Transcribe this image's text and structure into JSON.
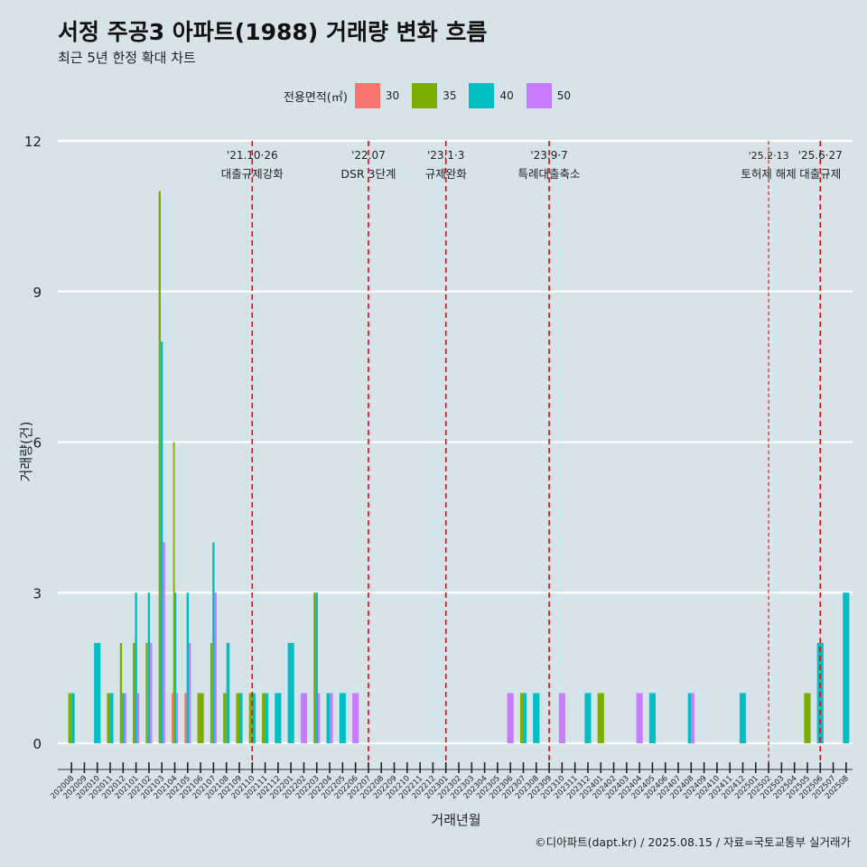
{
  "title": "서정 주공3 아파트(1988) 거래량 변화 흐름",
  "subtitle": "최근 5년 한정 확대 차트",
  "caption": "©디아파트(dapt.kr) / 2025.08.15 / 자료=국토교통부 실거래가",
  "legend": {
    "title": "전용면적(㎡)",
    "items": [
      {
        "label": "30",
        "color": "#f8766d"
      },
      {
        "label": "35",
        "color": "#7cae00"
      },
      {
        "label": "40",
        "color": "#00bfc4"
      },
      {
        "label": "50",
        "color": "#c77cff"
      }
    ]
  },
  "chart_data": {
    "type": "bar",
    "xlabel": "거래년월",
    "ylabel": "거래량(건)",
    "ylim": [
      -0.6,
      12.3
    ],
    "yticks": [
      0,
      3,
      6,
      9,
      12
    ],
    "categories": [
      "202008",
      "202009",
      "202010",
      "202011",
      "202012",
      "202101",
      "202102",
      "202103",
      "202104",
      "202105",
      "202106",
      "202107",
      "202108",
      "202109",
      "202110",
      "202111",
      "202112",
      "202201",
      "202202",
      "202203",
      "202204",
      "202205",
      "202206",
      "202207",
      "202208",
      "202209",
      "202210",
      "202211",
      "202212",
      "202301",
      "202302",
      "202303",
      "202304",
      "202305",
      "202306",
      "202307",
      "202308",
      "202309",
      "202310",
      "202311",
      "202312",
      "202401",
      "202402",
      "202403",
      "202404",
      "202405",
      "202406",
      "202407",
      "202408",
      "202409",
      "202410",
      "202411",
      "202412",
      "202501",
      "202502",
      "202503",
      "202504",
      "202505",
      "202506",
      "202507",
      "202508"
    ],
    "series": [
      {
        "name": "30",
        "color": "#f8766d",
        "values": [
          0,
          0,
          0,
          0,
          0,
          0,
          0,
          0,
          1,
          1,
          0,
          0,
          0,
          0,
          0,
          0,
          0,
          0,
          0,
          0,
          0,
          0,
          0,
          0,
          0,
          0,
          0,
          0,
          0,
          0,
          0,
          0,
          0,
          0,
          0,
          0,
          0,
          0,
          0,
          0,
          0,
          0,
          0,
          0,
          0,
          0,
          0,
          0,
          0,
          0,
          0,
          0,
          0,
          0,
          0,
          0,
          0,
          0,
          0,
          0,
          0
        ]
      },
      {
        "name": "35",
        "color": "#7cae00",
        "values": [
          1,
          0,
          0,
          1,
          2,
          2,
          2,
          11,
          6,
          0,
          1,
          2,
          1,
          1,
          1,
          1,
          0,
          0,
          0,
          3,
          0,
          0,
          0,
          0,
          0,
          0,
          0,
          0,
          0,
          0,
          0,
          0,
          0,
          0,
          0,
          1,
          0,
          0,
          0,
          0,
          0,
          1,
          0,
          0,
          0,
          0,
          0,
          0,
          0,
          0,
          0,
          0,
          0,
          0,
          0,
          0,
          0,
          1,
          0,
          0,
          0
        ]
      },
      {
        "name": "40",
        "color": "#00bfc4",
        "values": [
          1,
          0,
          2,
          1,
          1,
          3,
          3,
          8,
          3,
          3,
          0,
          4,
          2,
          1,
          1,
          1,
          1,
          2,
          0,
          3,
          1,
          1,
          0,
          0,
          0,
          0,
          0,
          0,
          0,
          0,
          0,
          0,
          0,
          0,
          0,
          1,
          1,
          0,
          0,
          0,
          1,
          0,
          0,
          0,
          0,
          1,
          0,
          0,
          1,
          0,
          0,
          0,
          1,
          0,
          0,
          0,
          0,
          0,
          2,
          0,
          3
        ]
      },
      {
        "name": "50",
        "color": "#c77cff",
        "values": [
          0,
          0,
          0,
          0,
          1,
          1,
          2,
          4,
          1,
          2,
          0,
          3,
          0,
          0,
          0,
          0,
          0,
          0,
          1,
          1,
          1,
          0,
          1,
          0,
          0,
          0,
          0,
          0,
          0,
          0,
          0,
          0,
          0,
          0,
          1,
          0,
          0,
          0,
          1,
          0,
          0,
          0,
          0,
          0,
          1,
          0,
          0,
          0,
          1,
          0,
          0,
          0,
          0,
          0,
          0,
          0,
          0,
          0,
          0,
          0,
          0
        ]
      }
    ],
    "annotations": [
      {
        "at": "202110",
        "date": "'21.10·26",
        "text": "대출규제강화",
        "dense": true
      },
      {
        "at": "202207",
        "date": "'22.07",
        "text": "DSR 3단계",
        "dense": true
      },
      {
        "at": "202301",
        "date": "'23.1·3",
        "text": "규제완화",
        "dense": true
      },
      {
        "at": "202309",
        "date": "'23.9·7",
        "text": "특례대출축소",
        "dense": true
      },
      {
        "at": "202502",
        "date": "'25.2·13",
        "text": "토허제 해제",
        "dense": false
      },
      {
        "at": "202506",
        "date": "'25.6·27",
        "text": "대출규제",
        "dense": true
      }
    ],
    "grid": true,
    "legend_position": "top"
  }
}
